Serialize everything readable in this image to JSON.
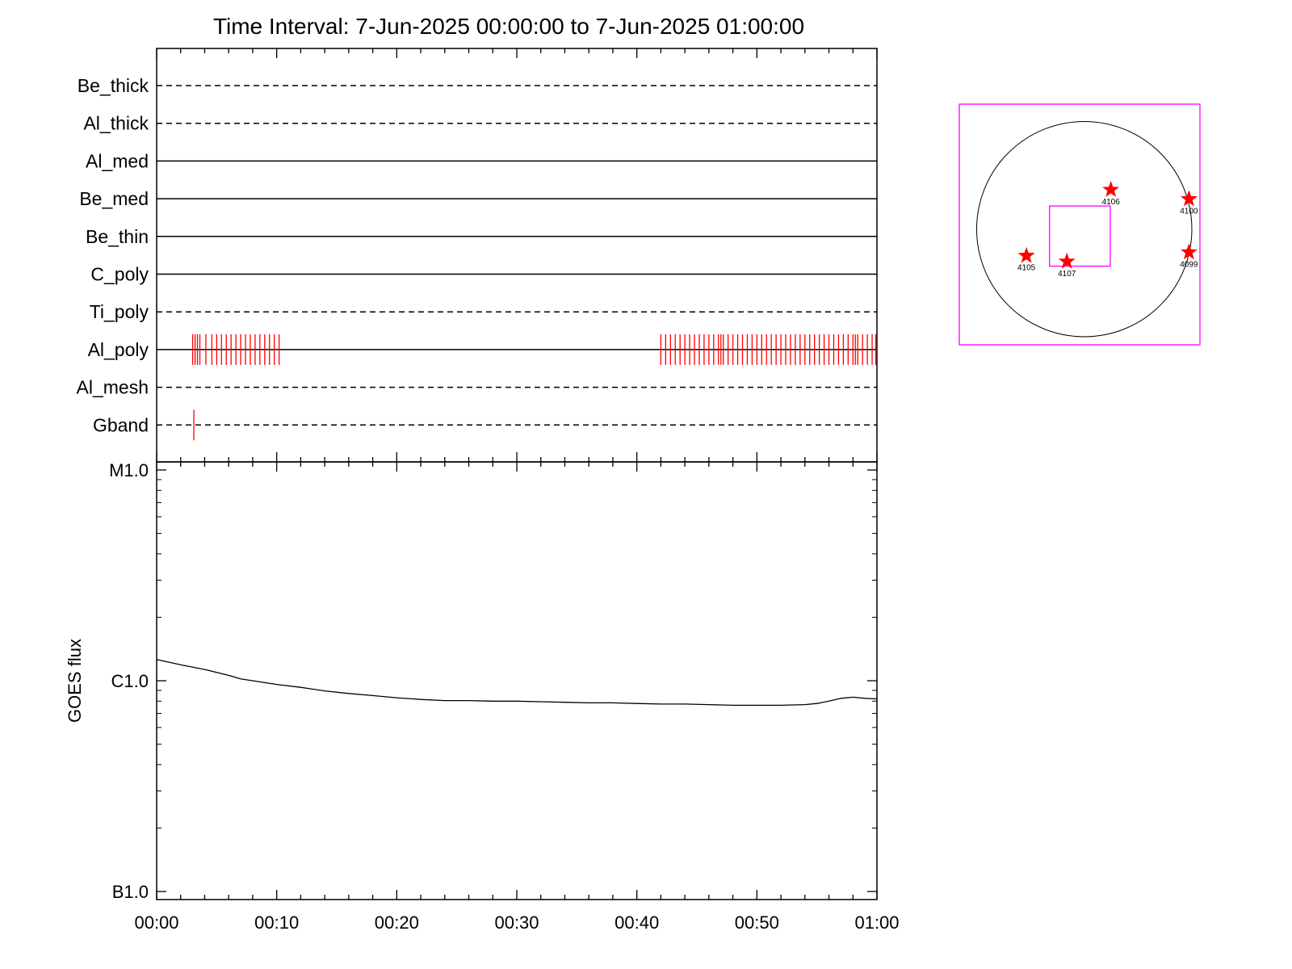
{
  "chart_data": [
    {
      "type": "timeline",
      "title": "Time Interval:  7-Jun-2025 00:00:00 to  7-Jun-2025 01:00:00",
      "x_unit": "minutes after 7-Jun-2025 00:00:00",
      "xlim": [
        0,
        60
      ],
      "rows": [
        {
          "name": "Be_thick",
          "line": "dashed",
          "ticks": []
        },
        {
          "name": "Al_thick",
          "line": "dashed",
          "ticks": []
        },
        {
          "name": "Al_med",
          "line": "solid",
          "ticks": []
        },
        {
          "name": "Be_med",
          "line": "solid",
          "ticks": []
        },
        {
          "name": "Be_thin",
          "line": "solid",
          "ticks": []
        },
        {
          "name": "C_poly",
          "line": "solid",
          "ticks": []
        },
        {
          "name": "Ti_poly",
          "line": "dashed",
          "ticks": []
        },
        {
          "name": "Al_poly",
          "line": "solid",
          "ticks": [
            3.0,
            3.2,
            3.4,
            3.6,
            4.1,
            4.6,
            5.0,
            5.4,
            5.8,
            6.2,
            6.6,
            7.0,
            7.4,
            7.8,
            8.2,
            8.6,
            9.0,
            9.4,
            9.8,
            10.2,
            42.0,
            42.4,
            42.8,
            43.2,
            43.6,
            44.0,
            44.4,
            44.8,
            45.2,
            45.6,
            46.0,
            46.4,
            46.8,
            47.0,
            47.2,
            47.6,
            48.0,
            48.4,
            48.8,
            49.2,
            49.6,
            50.0,
            50.4,
            50.8,
            51.2,
            51.6,
            52.0,
            52.4,
            52.8,
            53.2,
            53.6,
            54.0,
            54.4,
            54.8,
            55.2,
            55.6,
            56.0,
            56.4,
            56.8,
            57.2,
            57.6,
            58.0,
            58.2,
            58.4,
            58.8,
            59.2,
            59.6,
            59.9
          ]
        },
        {
          "name": "Al_mesh",
          "line": "dashed",
          "ticks": []
        },
        {
          "name": "Gband",
          "line": "dashed",
          "ticks": [
            3.1
          ]
        }
      ],
      "x_tick_labels": [
        "00:00",
        "00:10",
        "00:20",
        "00:30",
        "00:40",
        "00:50",
        "01:00"
      ],
      "colors": {
        "ticks": "#ff0000",
        "axes": "#000000"
      }
    },
    {
      "type": "line",
      "ylabel": "GOES flux",
      "yscale": "log",
      "ylim": [
        1e-07,
        1e-05
      ],
      "y_tick_labels": [
        {
          "value": 1e-05,
          "label": "M1.0"
        },
        {
          "value": 1e-06,
          "label": "C1.0"
        },
        {
          "value": 1e-07,
          "label": "B1.0"
        }
      ],
      "x_tick_labels": [
        "00:00",
        "00:10",
        "00:20",
        "00:30",
        "00:40",
        "00:50",
        "01:00"
      ],
      "xlim": [
        0,
        60
      ],
      "series": [
        {
          "x": [
            0,
            2,
            4,
            6,
            7,
            8,
            10,
            12,
            14,
            16,
            18,
            20,
            22,
            24,
            26,
            28,
            30,
            32,
            34,
            36,
            38,
            40,
            42,
            44,
            46,
            48,
            50,
            52,
            54,
            55,
            56,
            57,
            58,
            59,
            60
          ],
          "y": [
            1.26e-06,
            1.19e-06,
            1.13e-06,
            1.06e-06,
            1.02e-06,
            1e-06,
            9.6e-07,
            9.3e-07,
            8.95e-07,
            8.7e-07,
            8.5e-07,
            8.3e-07,
            8.15e-07,
            8.05e-07,
            8.05e-07,
            8e-07,
            8e-07,
            7.95e-07,
            7.9e-07,
            7.85e-07,
            7.85e-07,
            7.8e-07,
            7.75e-07,
            7.75e-07,
            7.7e-07,
            7.65e-07,
            7.65e-07,
            7.65e-07,
            7.7e-07,
            7.8e-07,
            8e-07,
            8.25e-07,
            8.35e-07,
            8.25e-07,
            8.2e-07
          ],
          "color": "#000000"
        }
      ]
    },
    {
      "type": "scatter",
      "chart_kind": "solar disk map",
      "points": [
        {
          "label": "4106",
          "x": 230,
          "y": 340
        },
        {
          "label": "4100",
          "x": 905,
          "y": 260
        },
        {
          "label": "4105",
          "x": -500,
          "y": -230
        },
        {
          "label": "4107",
          "x": -150,
          "y": -280
        },
        {
          "label": "4099",
          "x": 905,
          "y": -200
        }
      ],
      "field_of_view": {
        "x": [
          -1080,
          1000
        ],
        "y": [
          -1000,
          1080
        ]
      },
      "inner_box": {
        "x": [
          -300,
          225
        ],
        "y": [
          -320,
          200
        ]
      },
      "disk_radius": 930,
      "colors": {
        "frame": "#ff00ff",
        "markers": "#ff0000",
        "disk": "#000000"
      }
    }
  ]
}
